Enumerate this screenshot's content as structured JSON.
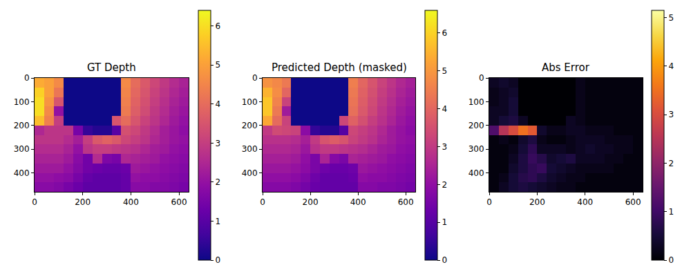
{
  "chart_data": [
    {
      "type": "heatmap",
      "title": "GT Depth",
      "color": "plasma",
      "x": [
        20,
        60,
        100,
        140,
        180,
        220,
        260,
        300,
        340,
        380,
        420,
        460,
        500,
        540,
        580,
        620
      ],
      "y": [
        20,
        60,
        100,
        140,
        180,
        220,
        260,
        300,
        340,
        380,
        420,
        460
      ],
      "z": [
        [
          5.2,
          5.0,
          4.6,
          0,
          0,
          0,
          0,
          0,
          0,
          4.6,
          4.0,
          3.6,
          3.2,
          2.9,
          2.6,
          2.4
        ],
        [
          5.8,
          5.0,
          4.2,
          0,
          0,
          0,
          0,
          0,
          0,
          4.5,
          3.9,
          3.5,
          3.1,
          2.8,
          2.5,
          2.3
        ],
        [
          6.0,
          4.8,
          3.5,
          0,
          0,
          0,
          0,
          0,
          0,
          4.4,
          3.8,
          3.4,
          3.0,
          2.7,
          2.4,
          2.2
        ],
        [
          6.0,
          4.6,
          2.0,
          0,
          0,
          0,
          0,
          0,
          0,
          4.3,
          3.7,
          3.3,
          2.9,
          2.6,
          2.3,
          2.1
        ],
        [
          5.5,
          4.4,
          3.0,
          0,
          0,
          0,
          0,
          0,
          3.5,
          4.0,
          3.5,
          3.1,
          2.8,
          2.5,
          2.2,
          2.0
        ],
        [
          2.5,
          2.8,
          2.8,
          2.8,
          1.5,
          0.5,
          0.3,
          0.3,
          1.0,
          3.4,
          3.2,
          2.9,
          2.6,
          2.3,
          2.1,
          1.9
        ],
        [
          2.8,
          2.8,
          2.8,
          2.6,
          2.3,
          3.0,
          3.6,
          3.8,
          3.6,
          3.2,
          3.0,
          2.8,
          2.5,
          2.3,
          2.1,
          2.0
        ],
        [
          2.6,
          2.6,
          2.6,
          2.4,
          2.0,
          2.8,
          3.0,
          3.0,
          2.9,
          2.8,
          2.7,
          2.5,
          2.3,
          2.2,
          2.0,
          1.9
        ],
        [
          2.4,
          2.4,
          2.4,
          2.2,
          1.8,
          1.4,
          2.6,
          1.6,
          1.5,
          2.5,
          2.4,
          2.3,
          2.2,
          2.0,
          1.9,
          1.8
        ],
        [
          2.2,
          2.2,
          2.2,
          2.0,
          1.7,
          1.4,
          1.3,
          1.2,
          1.2,
          1.3,
          2.2,
          2.1,
          2.0,
          1.9,
          1.8,
          1.7
        ],
        [
          2.0,
          2.0,
          1.9,
          1.8,
          1.5,
          1.2,
          1.1,
          1.1,
          1.1,
          1.2,
          2.0,
          1.9,
          1.9,
          1.8,
          1.7,
          1.6
        ],
        [
          1.8,
          1.8,
          1.7,
          1.5,
          1.3,
          1.1,
          1.1,
          1.1,
          1.1,
          1.2,
          1.8,
          1.8,
          1.7,
          1.7,
          1.6,
          1.5
        ]
      ],
      "xlim": [
        0,
        640
      ],
      "ylim": [
        480,
        0
      ],
      "xticks": [
        0,
        200,
        400,
        600
      ],
      "yticks": [
        0,
        100,
        200,
        300,
        400
      ],
      "colorbar_range": [
        0,
        6.4
      ],
      "colorbar_ticks": [
        0,
        1,
        2,
        3,
        4,
        5,
        6
      ]
    },
    {
      "type": "heatmap",
      "title": "Predicted Depth (masked)",
      "color": "plasma",
      "x": [
        20,
        60,
        100,
        140,
        180,
        220,
        260,
        300,
        340,
        380,
        420,
        460,
        500,
        540,
        580,
        620
      ],
      "y": [
        20,
        60,
        100,
        140,
        180,
        220,
        260,
        300,
        340,
        380,
        420,
        460
      ],
      "z": [
        [
          4.9,
          4.7,
          4.4,
          0,
          0,
          0,
          0,
          0,
          0,
          4.5,
          4.0,
          3.6,
          3.2,
          2.9,
          2.6,
          2.4
        ],
        [
          5.5,
          4.8,
          4.0,
          0,
          0,
          0,
          0,
          0,
          0,
          4.4,
          3.9,
          3.5,
          3.1,
          2.8,
          2.5,
          2.3
        ],
        [
          5.8,
          4.6,
          3.2,
          0,
          0,
          0,
          0,
          0,
          0,
          4.3,
          3.8,
          3.4,
          3.0,
          2.7,
          2.4,
          2.2
        ],
        [
          5.8,
          4.4,
          2.3,
          0,
          0,
          0,
          0,
          0,
          0,
          4.2,
          3.7,
          3.3,
          2.9,
          2.6,
          2.3,
          2.1
        ],
        [
          5.3,
          4.1,
          3.2,
          0,
          0,
          0,
          0,
          0,
          3.3,
          3.9,
          3.5,
          3.1,
          2.8,
          2.5,
          2.2,
          2.0
        ],
        [
          3.0,
          3.4,
          3.3,
          3.2,
          1.9,
          0.5,
          0.3,
          0.3,
          1.0,
          3.3,
          3.1,
          2.9,
          2.6,
          2.3,
          2.1,
          1.9
        ],
        [
          2.8,
          2.8,
          2.8,
          2.7,
          2.4,
          3.0,
          3.6,
          3.8,
          3.6,
          3.2,
          3.0,
          2.8,
          2.5,
          2.3,
          2.1,
          2.0
        ],
        [
          2.6,
          2.6,
          2.6,
          2.5,
          2.2,
          2.8,
          3.0,
          3.0,
          2.9,
          2.8,
          2.7,
          2.5,
          2.3,
          2.2,
          2.0,
          1.9
        ],
        [
          2.4,
          2.4,
          2.4,
          2.3,
          2.0,
          1.6,
          2.5,
          1.8,
          1.6,
          2.5,
          2.4,
          2.3,
          2.2,
          2.0,
          1.9,
          1.8
        ],
        [
          2.2,
          2.2,
          2.2,
          2.1,
          1.9,
          1.6,
          1.4,
          1.3,
          1.3,
          1.4,
          2.2,
          2.1,
          2.0,
          1.9,
          1.8,
          1.7
        ],
        [
          2.0,
          2.0,
          2.0,
          1.9,
          1.7,
          1.4,
          1.2,
          1.2,
          1.2,
          1.3,
          2.0,
          1.9,
          1.9,
          1.8,
          1.7,
          1.6
        ],
        [
          1.8,
          1.8,
          1.8,
          1.7,
          1.5,
          1.3,
          1.2,
          1.2,
          1.2,
          1.2,
          1.8,
          1.8,
          1.7,
          1.7,
          1.6,
          1.5
        ]
      ],
      "xlim": [
        0,
        640
      ],
      "ylim": [
        480,
        0
      ],
      "xticks": [
        0,
        200,
        400,
        600
      ],
      "yticks": [
        0,
        100,
        200,
        300,
        400
      ],
      "colorbar_range": [
        0,
        6.6
      ],
      "colorbar_ticks": [
        0,
        1,
        2,
        3,
        4,
        5,
        6
      ]
    },
    {
      "type": "heatmap",
      "title": "Abs Error",
      "color": "inferno",
      "x": [
        20,
        60,
        100,
        140,
        180,
        220,
        260,
        300,
        340,
        380,
        420,
        460,
        500,
        540,
        580,
        620
      ],
      "y": [
        20,
        60,
        100,
        140,
        180,
        220,
        260,
        300,
        340,
        380,
        420,
        460
      ],
      "z": [
        [
          0.3,
          0.4,
          0.3,
          0,
          0,
          0,
          0,
          0,
          0,
          0.2,
          0.1,
          0.1,
          0.1,
          0.1,
          0.1,
          0.1
        ],
        [
          0.2,
          0.3,
          0.4,
          0,
          0,
          0,
          0,
          0,
          0,
          0.2,
          0.1,
          0.1,
          0.1,
          0.1,
          0.1,
          0.1
        ],
        [
          0.2,
          0.3,
          0.5,
          0,
          0,
          0,
          0,
          0,
          0,
          0.2,
          0.1,
          0.1,
          0.1,
          0.1,
          0.1,
          0.1
        ],
        [
          0.3,
          0.3,
          0.5,
          0,
          0,
          0,
          0,
          0,
          0,
          0.2,
          0.1,
          0.1,
          0.1,
          0.1,
          0.1,
          0.1
        ],
        [
          0.3,
          0.5,
          0.6,
          0.3,
          0,
          0,
          0,
          0,
          0.3,
          0.2,
          0.1,
          0.1,
          0.1,
          0.1,
          0.1,
          0.1
        ],
        [
          1.2,
          2.5,
          3.0,
          3.5,
          3.2,
          0.4,
          0.2,
          0.2,
          0.3,
          0.3,
          0.2,
          0.2,
          0.2,
          0.1,
          0.1,
          0.1
        ],
        [
          0.1,
          0.2,
          0.1,
          0.4,
          0.6,
          0.2,
          0.1,
          0.1,
          0.2,
          0.3,
          0.3,
          0.3,
          0.2,
          0.2,
          0.2,
          0.1
        ],
        [
          0.1,
          0.1,
          0.2,
          0.5,
          0.8,
          0.3,
          0.3,
          0.3,
          0.2,
          0.3,
          0.4,
          0.3,
          0.3,
          0.2,
          0.2,
          0.1
        ],
        [
          0.1,
          0.1,
          0.3,
          0.6,
          0.9,
          0.7,
          0.4,
          0.5,
          0.6,
          0.3,
          0.3,
          0.3,
          0.2,
          0.2,
          0.1,
          0.1
        ],
        [
          0.1,
          0.1,
          0.4,
          0.6,
          0.8,
          0.9,
          0.5,
          0.4,
          0.3,
          0.2,
          0.2,
          0.2,
          0.2,
          0.1,
          0.1,
          0.1
        ],
        [
          0.1,
          0.2,
          0.5,
          0.7,
          0.8,
          0.6,
          0.4,
          0.3,
          0.2,
          0.2,
          0.1,
          0.1,
          0.1,
          0.1,
          0.1,
          0.1
        ],
        [
          0.1,
          0.3,
          0.5,
          0.6,
          0.5,
          0.4,
          0.3,
          0.2,
          0.2,
          0.1,
          0.1,
          0.1,
          0.1,
          0.1,
          0.1,
          0.1
        ]
      ],
      "xlim": [
        0,
        640
      ],
      "ylim": [
        480,
        0
      ],
      "xticks": [
        0,
        200,
        400,
        600
      ],
      "yticks": [
        0,
        100,
        200,
        300,
        400
      ],
      "colorbar_range": [
        0,
        5.15
      ],
      "colorbar_ticks": [
        0,
        1,
        2,
        3,
        4,
        5
      ]
    }
  ]
}
